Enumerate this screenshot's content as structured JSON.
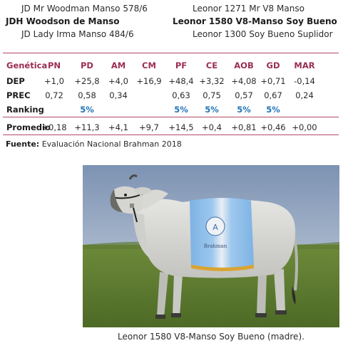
{
  "pedigree": {
    "sire_side": {
      "top": "JD Mr Woodman Manso 578/6",
      "middle": "JDH Woodson de Manso",
      "bottom": "JD Lady Irma Manso 484/6"
    },
    "dam_side": {
      "top": "Leonor 1271 Mr V8 Manso",
      "middle": "Leonor 1580 V8-Manso Soy Bueno",
      "bottom": "Leonor 1300 Soy Bueno Suplidor"
    }
  },
  "table": {
    "header_label": "Genética",
    "columns": [
      "PN",
      "PD",
      "AM",
      "CM",
      "PF",
      "CE",
      "AOB",
      "GD",
      "MAR"
    ],
    "rows": [
      {
        "label": "DEP",
        "values": [
          "+1,0",
          "+25,8",
          "+4,0",
          "+16,9",
          "+48,4",
          "+3,32",
          "+4,08",
          "+0,71",
          "-0,14"
        ]
      },
      {
        "label": "PREC",
        "values": [
          "0,72",
          "0,58",
          "0,34",
          "",
          "0,63",
          "0,75",
          "0,57",
          "0,67",
          "0,24"
        ]
      },
      {
        "label": "Ranking",
        "values": [
          "",
          "5%",
          "",
          "",
          "5%",
          "5%",
          "5%",
          "5%",
          ""
        ]
      },
      {
        "label": "Promedio",
        "values": [
          "+0,18",
          "+11,3",
          "+4,1",
          "+9,7",
          "+14,5",
          "+0,4",
          "+0,81",
          "+0,46",
          "+0,00"
        ]
      }
    ]
  },
  "source": {
    "label": "Fuente:",
    "text": " Evaluación Nacional Brahman 2018"
  },
  "photo": {
    "blanket_text": "Brahman"
  },
  "caption": "Leonor 1580 V8-Manso Soy Bueno (madre).",
  "colors": {
    "accent": "#9b2d52",
    "ranking": "#1f73b7"
  }
}
